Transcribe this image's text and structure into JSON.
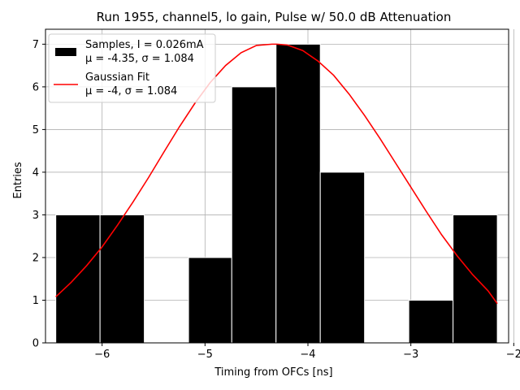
{
  "chart_data": {
    "type": "bar",
    "title": "Run 1955, channel5, lo gain, Pulse w/ 50.0 dB Attenuation",
    "xlabel": "Timing from OFCs [ns]",
    "ylabel": "Entries",
    "xlim": [
      -6.55,
      -2.05
    ],
    "ylim": [
      0,
      7.35
    ],
    "xticks": [
      -6,
      -5,
      -4,
      -3,
      -2
    ],
    "xtick_labels": [
      "−6",
      "−5",
      "−4",
      "−3",
      "−2"
    ],
    "yticks": [
      0,
      1,
      2,
      3,
      4,
      5,
      6,
      7
    ],
    "ytick_labels": [
      "0",
      "1",
      "2",
      "3",
      "4",
      "5",
      "6",
      "7"
    ],
    "grid": true,
    "legend_position": "top-left",
    "histogram": {
      "name": "Samples, I = 0.026mA",
      "stats": "μ = -4.35, σ = 1.084",
      "color": "#000000",
      "bins": [
        {
          "x0": -6.45,
          "x1": -6.02,
          "value": 3
        },
        {
          "x0": -6.02,
          "x1": -5.59,
          "value": 3
        },
        {
          "x0": -5.59,
          "x1": -5.16,
          "value": 0
        },
        {
          "x0": -5.16,
          "x1": -4.74,
          "value": 2
        },
        {
          "x0": -4.74,
          "x1": -4.31,
          "value": 6
        },
        {
          "x0": -4.31,
          "x1": -3.88,
          "value": 7
        },
        {
          "x0": -3.88,
          "x1": -3.45,
          "value": 4
        },
        {
          "x0": -3.45,
          "x1": -3.02,
          "value": 0
        },
        {
          "x0": -3.02,
          "x1": -2.59,
          "value": 1
        },
        {
          "x0": -2.59,
          "x1": -2.16,
          "value": 3
        }
      ]
    },
    "fit": {
      "name": "Gaussian Fit",
      "stats": "μ = -4, σ = 1.084",
      "color": "#ff0000",
      "x": [
        -6.45,
        -6.3,
        -6.15,
        -6.0,
        -5.85,
        -5.7,
        -5.55,
        -5.4,
        -5.25,
        -5.1,
        -4.95,
        -4.8,
        -4.65,
        -4.5,
        -4.35,
        -4.3,
        -4.2,
        -4.05,
        -3.9,
        -3.75,
        -3.6,
        -3.45,
        -3.3,
        -3.15,
        -3.0,
        -2.85,
        -2.7,
        -2.55,
        -2.4,
        -2.25,
        -2.16
      ],
      "y": [
        1.08,
        1.42,
        1.81,
        2.25,
        2.76,
        3.3,
        3.87,
        4.47,
        5.06,
        5.61,
        6.1,
        6.5,
        6.8,
        6.97,
        7.0,
        7.0,
        6.98,
        6.85,
        6.6,
        6.27,
        5.83,
        5.33,
        4.79,
        4.22,
        3.65,
        3.08,
        2.53,
        2.04,
        1.6,
        1.22,
        0.92
      ]
    }
  }
}
